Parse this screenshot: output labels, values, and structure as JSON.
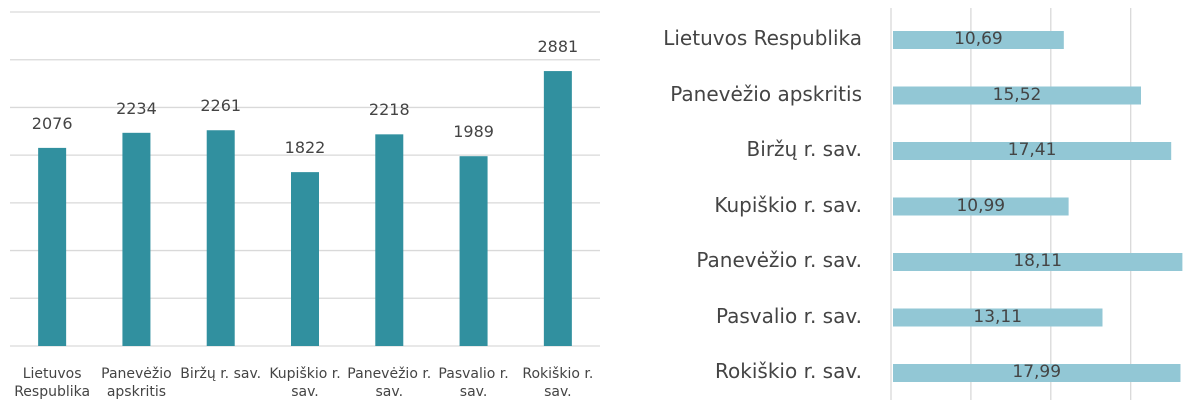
{
  "chart_data": [
    {
      "type": "bar",
      "categories": [
        "Lietuvos Respublika",
        "Panevėžio apskritis",
        "Biržų r. sav.",
        "Kupiškio r. sav.",
        "Panevėžio r. sav.",
        "Pasvalio r. sav.",
        "Rokiškio r. sav."
      ],
      "values": [
        2076,
        2234,
        2261,
        1822,
        2218,
        1989,
        2881
      ],
      "color": "#31909f",
      "ylim": [
        0,
        3500
      ],
      "yticks": [
        0,
        500,
        1000,
        1500,
        2000,
        2500,
        3000,
        3500
      ],
      "grid": true,
      "tick_labels": false
    },
    {
      "type": "barh",
      "categories": [
        "Lietuvos Respublika",
        "Panevėžio apskritis",
        "Biržų r. sav.",
        "Kupiškio r. sav.",
        "Panevėžio r. sav.",
        "Pasvalio r. sav.",
        "Rokiškio r. sav."
      ],
      "values": [
        10.69,
        15.52,
        17.41,
        10.99,
        18.11,
        13.11,
        17.99
      ],
      "value_labels": [
        "10,69",
        "15,52",
        "17,41",
        "10,99",
        "18,11",
        "13,11",
        "17,99"
      ],
      "color": "#92c7d5",
      "xlim": [
        0,
        19.4
      ],
      "xticks": [
        0,
        5,
        10,
        15
      ],
      "grid": true,
      "tick_labels": false
    }
  ]
}
